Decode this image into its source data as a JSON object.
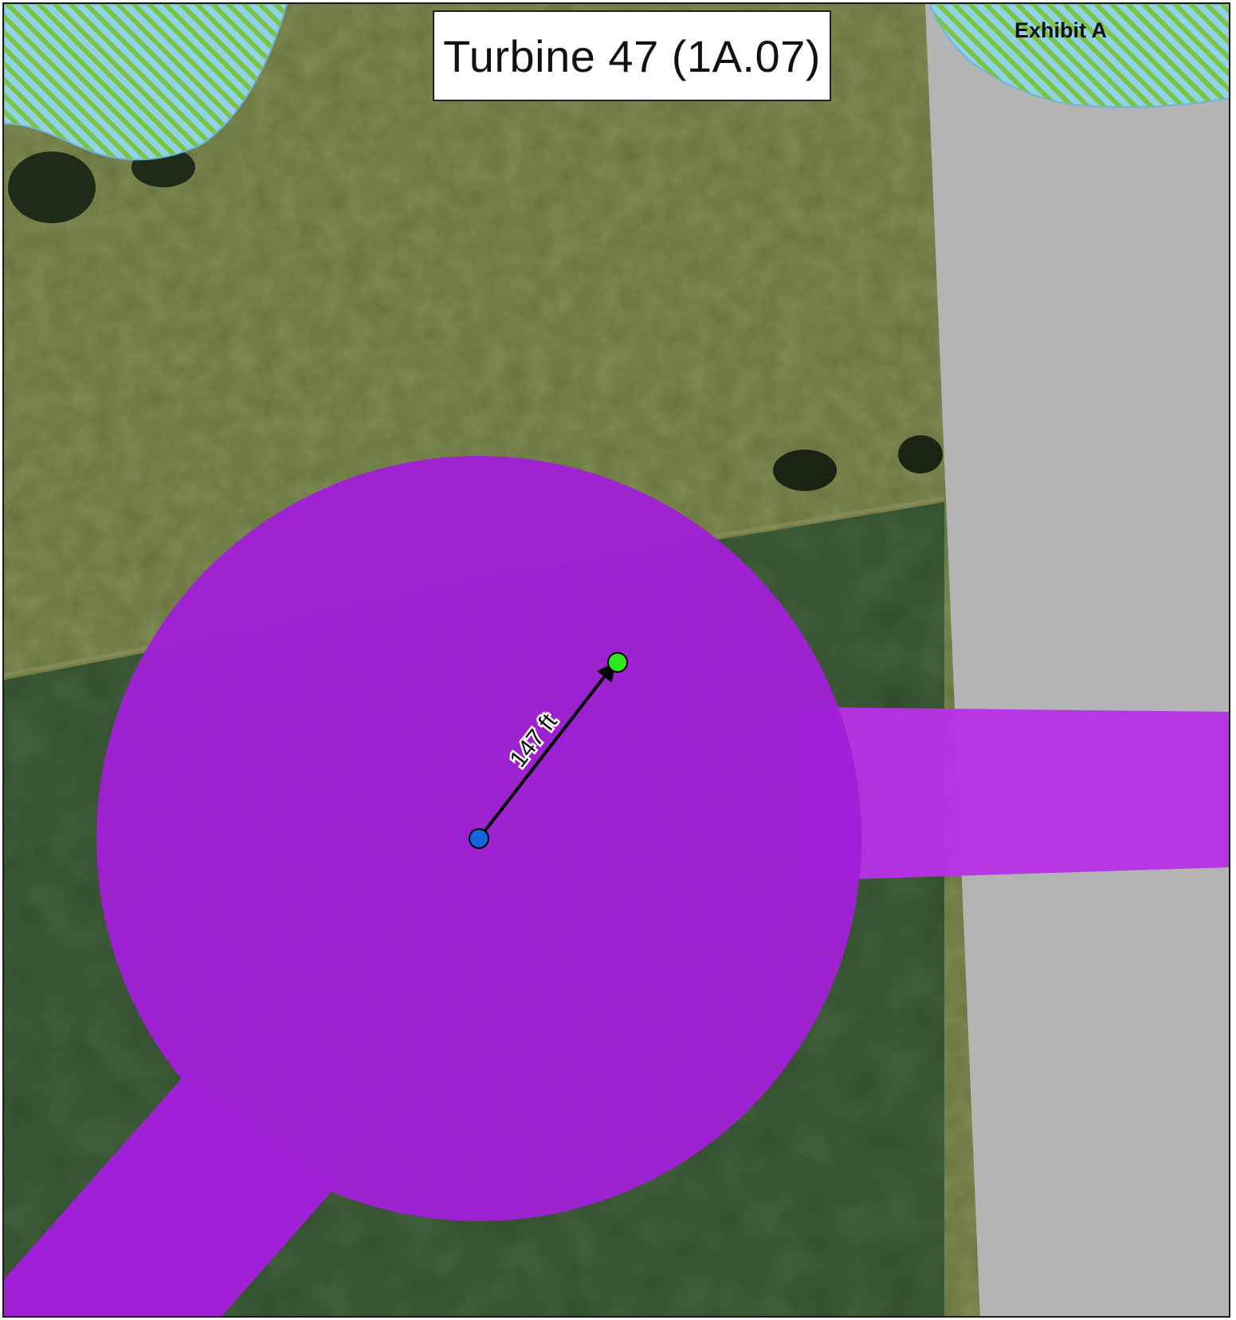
{
  "map": {
    "title": "Turbine 47 (1A.07)",
    "exhibit_label": "Exhibit A",
    "distance_label": "147 ft",
    "icons": [
      "turbine-location-marker",
      "target-location-marker",
      "direction-arrow"
    ],
    "colors": {
      "pad_fill": "#a020d6",
      "access_road_fill": "#b830e8",
      "road_gray": "#b4b4b4",
      "wetland_blue": "#8fd3e6",
      "wetland_hatch": "#7cc243",
      "meadow": "#66703c",
      "crop_field": "#2e4a2a",
      "turbine_marker": "#1565e0",
      "target_marker": "#2ee81f"
    }
  }
}
